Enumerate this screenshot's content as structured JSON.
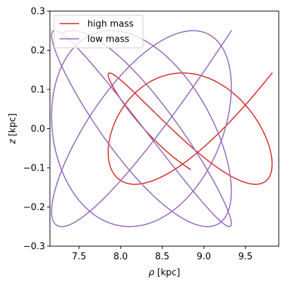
{
  "chart_data": {
    "type": "line",
    "title": "",
    "xlabel_symbol": "ρ",
    "xlabel_unit": "[kpc]",
    "ylabel_symbol": "z",
    "ylabel_unit": "[kpc]",
    "xlim": [
      7.15,
      9.9
    ],
    "ylim": [
      -0.3,
      0.3
    ],
    "xticks": [
      7.5,
      8.0,
      8.5,
      9.0,
      9.5
    ],
    "xtick_labels": [
      "7.5",
      "8.0",
      "8.5",
      "9.0",
      "9.5"
    ],
    "yticks": [
      -0.3,
      -0.2,
      -0.1,
      0.0,
      0.1,
      0.2,
      0.3
    ],
    "ytick_labels": [
      "−0.3",
      "−0.2",
      "−0.1",
      "0.0",
      "0.1",
      "0.2",
      "0.3"
    ],
    "grid": false,
    "legend_position": "upper-left",
    "series": [
      {
        "name": "high mass",
        "color": "#d62728",
        "orbit": {
          "rho_min": 7.85,
          "rho_max": 9.82,
          "z_amplitude": 0.142,
          "omega_rho": 1.0,
          "omega_z": 1.36,
          "phase_rho": 0.0,
          "phase_z": 0.0,
          "t_end": 11.0,
          "direction": -1
        }
      },
      {
        "name": "low mass",
        "color": "#9467bd",
        "orbit": {
          "rho_min": 7.17,
          "rho_max": 9.33,
          "z_amplitude": 0.25,
          "omega_rho": 1.0,
          "omega_z": 1.18,
          "phase_rho": 0.0,
          "phase_z": 0.0,
          "t_end": 21.5,
          "direction": -1
        }
      }
    ]
  }
}
